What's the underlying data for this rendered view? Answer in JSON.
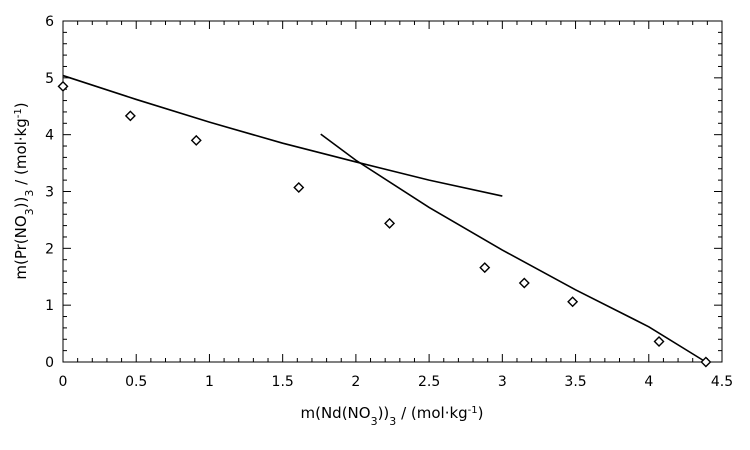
{
  "chart_data": {
    "type": "scatter",
    "title": "",
    "xlabel": {
      "main": "m(Nd(NO",
      "sub": "3",
      "mid": "))",
      "sub2": "3",
      "tail": " / (mol·kg",
      "sup": "-1",
      "end": ")"
    },
    "ylabel": {
      "main": "m(Pr(NO",
      "sub": "3",
      "mid": "))",
      "sub2": "3",
      "tail": " / (mol·kg",
      "sup": "-1",
      "end": ")"
    },
    "xlim": [
      0,
      4.5
    ],
    "ylim": [
      0,
      6
    ],
    "xticks": [
      "0",
      "0.5",
      "1",
      "1.5",
      "2",
      "2.5",
      "3",
      "3.5",
      "4",
      "4.5"
    ],
    "yticks": [
      "0",
      "1",
      "2",
      "3",
      "4",
      "5",
      "6"
    ],
    "grid": false,
    "legend": "none",
    "series": [
      {
        "marker": "diamond",
        "x": [
          0.0,
          0.46,
          0.91,
          1.61,
          2.23,
          2.88,
          3.15,
          3.48,
          4.07,
          4.39
        ],
        "y": [
          4.85,
          4.33,
          3.9,
          3.07,
          2.44,
          1.66,
          1.39,
          1.06,
          0.36,
          0.0
        ]
      }
    ],
    "curves": [
      {
        "x": [
          0.0,
          0.5,
          1.0,
          1.5,
          2.0,
          2.5,
          3.0
        ],
        "y": [
          5.04,
          4.62,
          4.22,
          3.85,
          3.52,
          3.2,
          2.92
        ]
      },
      {
        "x": [
          1.76,
          2.0,
          2.5,
          3.0,
          3.5,
          4.0,
          4.39
        ],
        "y": [
          4.01,
          3.55,
          2.72,
          1.97,
          1.27,
          0.62,
          0.0
        ]
      }
    ]
  }
}
